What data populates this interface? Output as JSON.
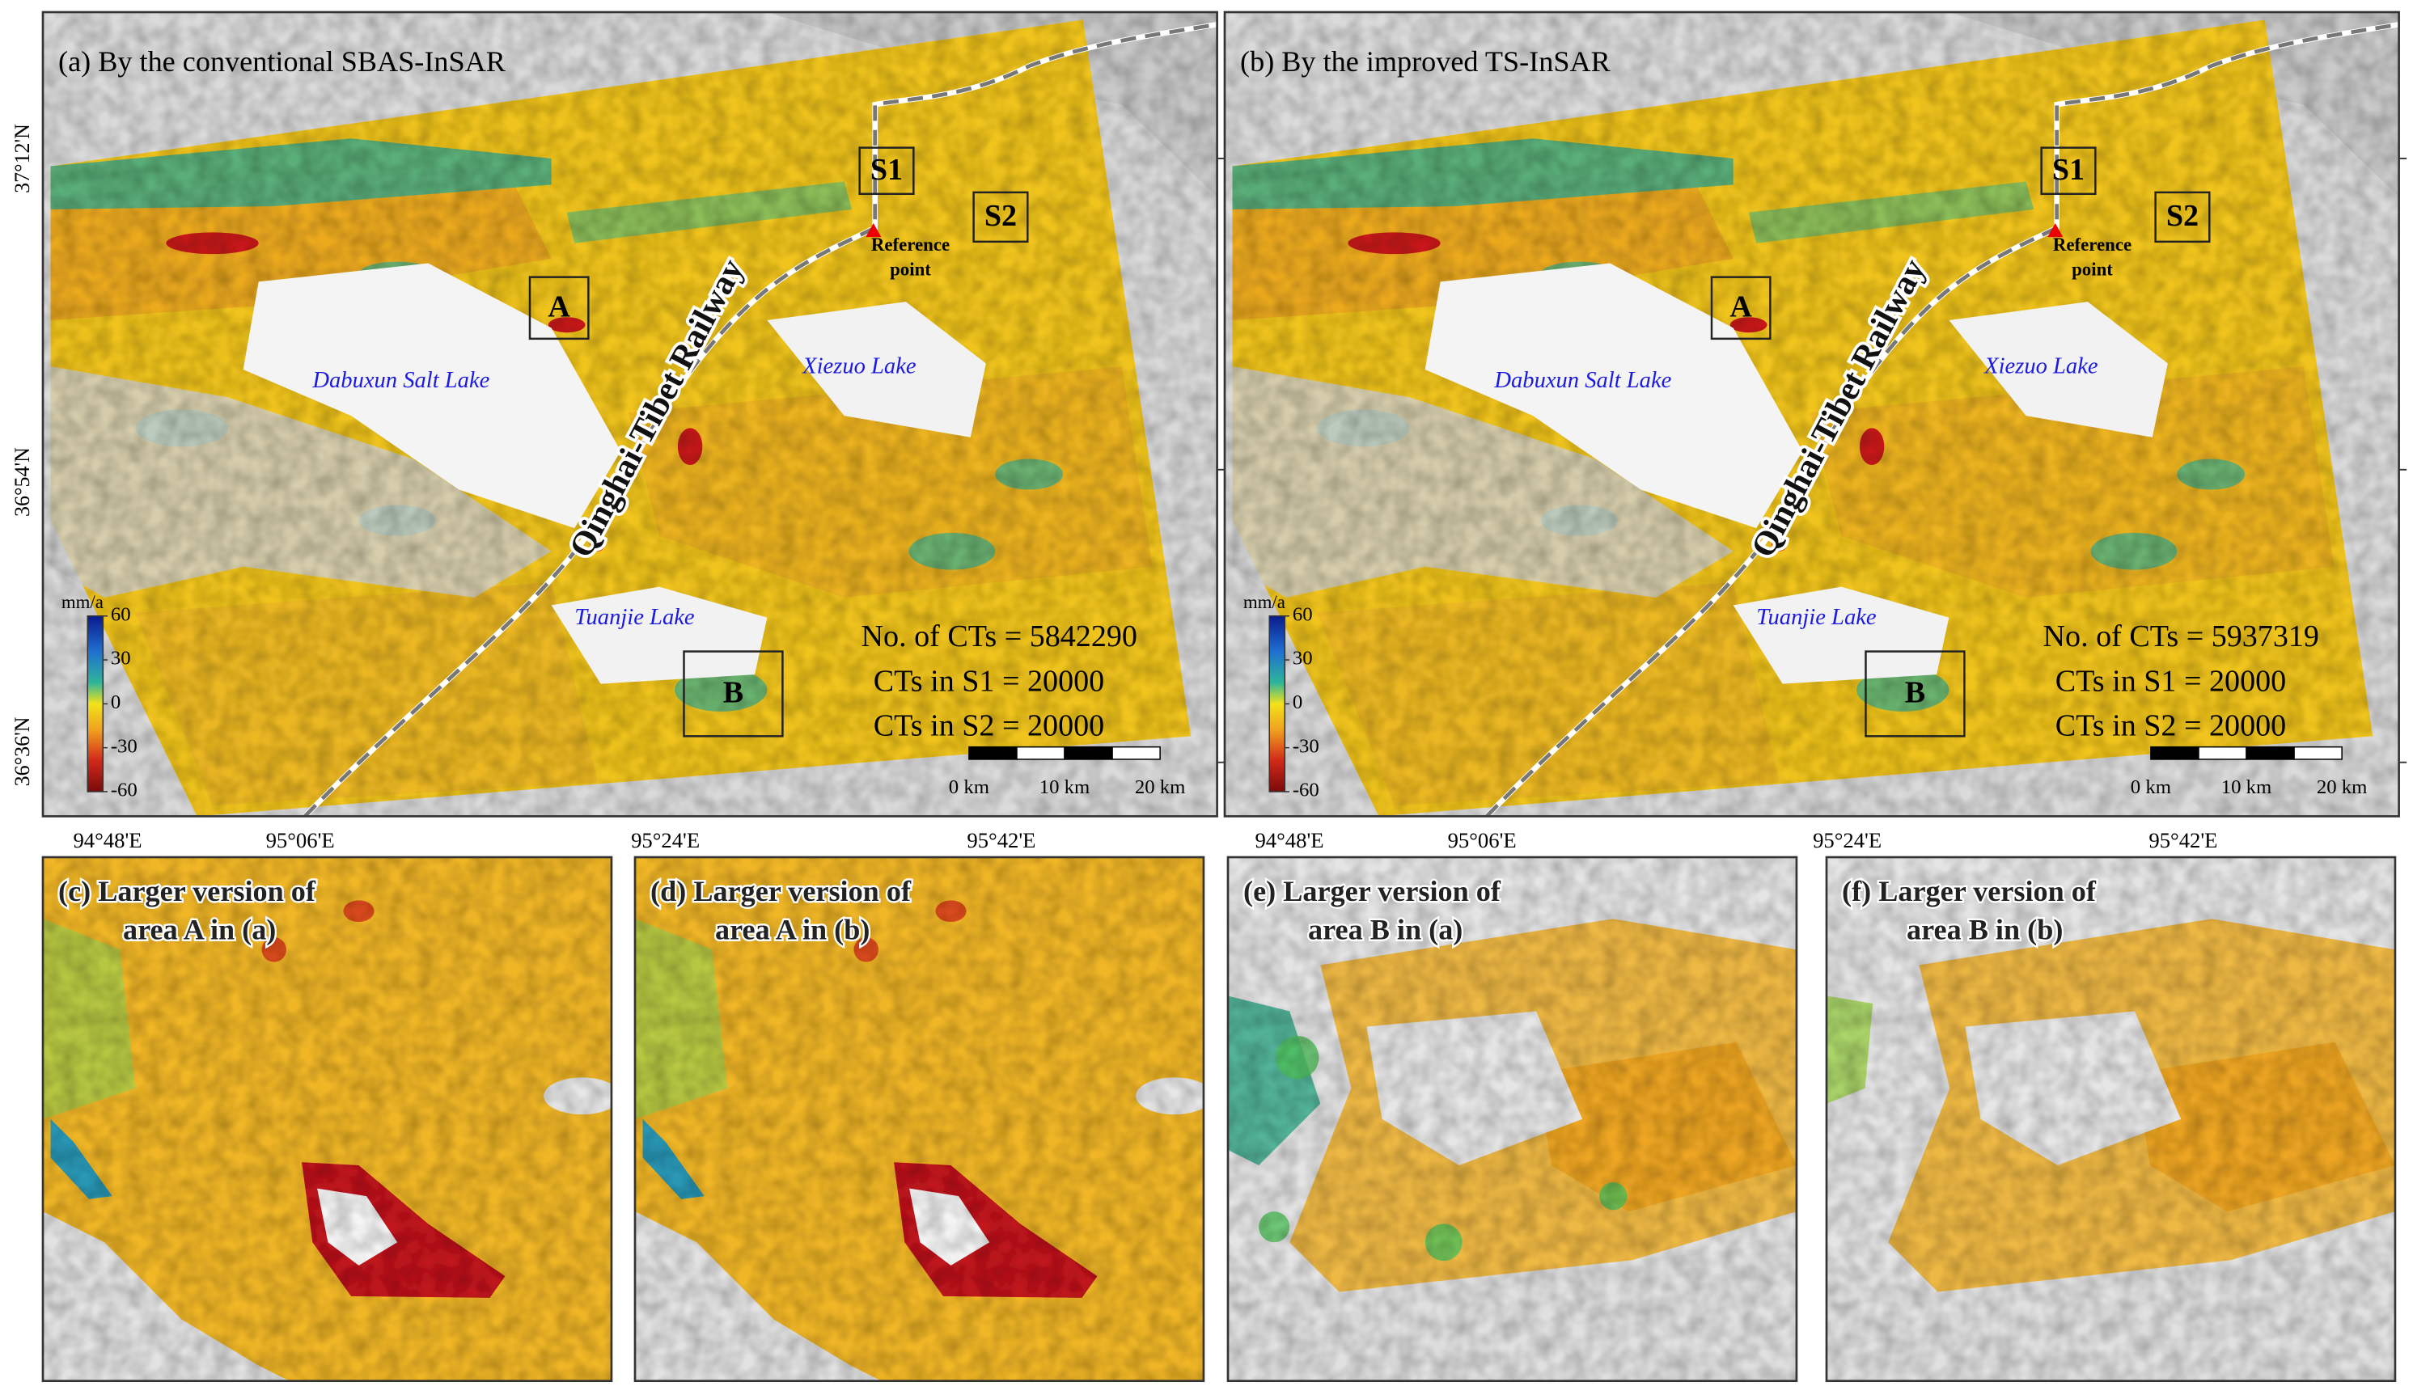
{
  "top_panels": [
    {
      "title": "(a) By the conventional SBAS-InSAR",
      "stats": [
        "No. of CTs = 5842290",
        "CTs in S1 = 20000",
        "CTs in S2 = 20000"
      ]
    },
    {
      "title": "(b) By the improved TS-InSAR",
      "stats": [
        "No. of CTs = 5937319",
        "CTs in S1 = 20000",
        "CTs in S2 = 20000"
      ]
    }
  ],
  "map_labels": {
    "s1": "S1",
    "s2": "S2",
    "reference": [
      "Reference",
      "point"
    ],
    "area_a": "A",
    "area_b": "B",
    "lakes": [
      "Dabuxun Salt Lake",
      "Xiezuo Lake",
      "Tuanjie Lake"
    ],
    "railway": "Qinghai-Tibet Railway"
  },
  "colorbar": {
    "unit": "mm/a",
    "ticks": [
      60,
      30,
      0,
      -30,
      -60
    ]
  },
  "scale_bar": [
    "0 km",
    "10 km",
    "20 km"
  ],
  "latitude_labels": [
    "37°12'N",
    "36°54'N",
    "36°36'N"
  ],
  "longitude_labels": [
    "94°48'E",
    "95°06'E",
    "95°24'E",
    "95°42'E"
  ],
  "zoom_panels": [
    {
      "title": [
        "(c) Larger version of",
        "area A in (a)"
      ]
    },
    {
      "title": [
        "(d) Larger version of",
        "area A in (b)"
      ]
    },
    {
      "title": [
        "(e) Larger version of",
        "area B in (a)"
      ]
    },
    {
      "title": [
        "(f) Larger version of",
        "area B in (b)"
      ]
    }
  ]
}
